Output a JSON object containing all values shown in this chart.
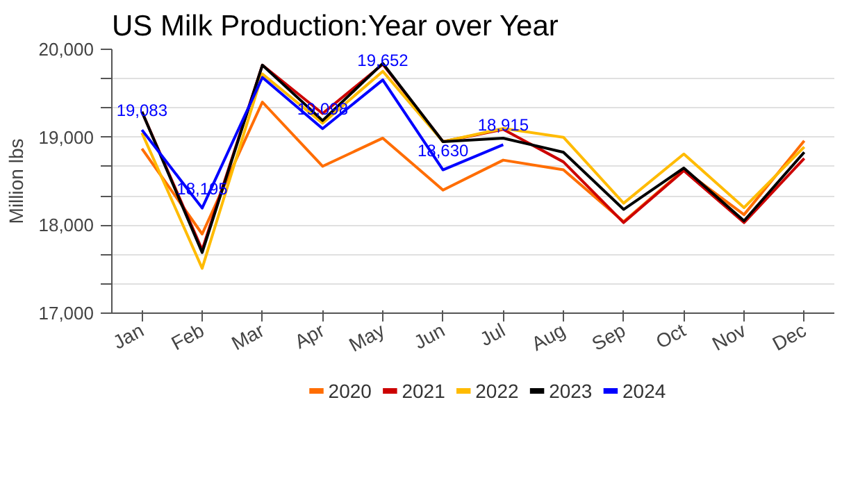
{
  "chart_data": {
    "type": "line",
    "title": "US Milk Production:Year over Year",
    "ylabel": "Million lbs",
    "categories": [
      "Jan",
      "Feb",
      "Mar",
      "Apr",
      "May",
      "Jun",
      "Jul",
      "Aug",
      "Sep",
      "Oct",
      "Nov",
      "Dec"
    ],
    "ylim": [
      17000,
      20000
    ],
    "yticks": [
      {
        "value": 17000,
        "label": "17,000"
      },
      {
        "value": 17333,
        "label": null
      },
      {
        "value": 17667,
        "label": null
      },
      {
        "value": 18000,
        "label": "18,000"
      },
      {
        "value": 18333,
        "label": null
      },
      {
        "value": 18667,
        "label": null
      },
      {
        "value": 19000,
        "label": "19,000"
      },
      {
        "value": 19333,
        "label": null
      },
      {
        "value": 19667,
        "label": null
      },
      {
        "value": 20000,
        "label": "20,000"
      }
    ],
    "grid": "y",
    "legend": "bottom",
    "line_style": "solid",
    "marker": "none",
    "series": [
      {
        "name": "2020",
        "color": "#ff6d01",
        "values": [
          18870,
          17900,
          19400,
          18670,
          18990,
          18400,
          18740,
          18630,
          18040,
          18630,
          18120,
          18960
        ]
      },
      {
        "name": "2021",
        "color": "#cc0000",
        "values": [
          19290,
          17720,
          19820,
          19270,
          19830,
          18950,
          19090,
          18720,
          18030,
          18620,
          18030,
          18760
        ]
      },
      {
        "name": "2022",
        "color": "#ffbb00",
        "values": [
          19050,
          17510,
          19720,
          19160,
          19750,
          18950,
          19100,
          19000,
          18250,
          18810,
          18200,
          18890
        ]
      },
      {
        "name": "2023",
        "color": "#000000",
        "values": [
          19290,
          17690,
          19820,
          19190,
          19840,
          18950,
          18990,
          18830,
          18180,
          18650,
          18050,
          18830
        ]
      },
      {
        "name": "2024",
        "color": "#0000ff",
        "values": [
          19083,
          18195,
          19680,
          19098,
          19652,
          18630,
          18915,
          null,
          null,
          null,
          null,
          null
        ],
        "value_labels": [
          "19,083",
          "18,195",
          null,
          "19,098",
          "19,652",
          "18,630",
          "18,915",
          null,
          null,
          null,
          null,
          null
        ]
      }
    ]
  }
}
